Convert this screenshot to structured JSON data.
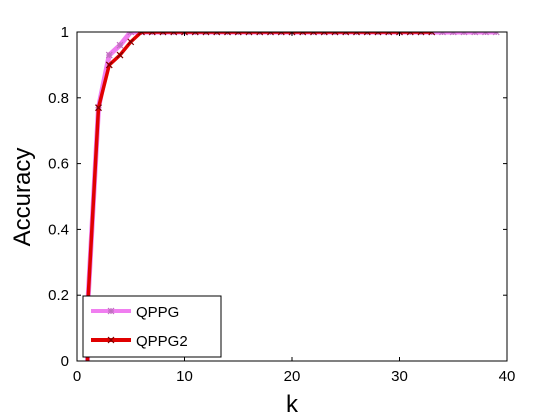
{
  "chart_data": {
    "type": "line",
    "xlabel": "k",
    "ylabel": "Accuracy",
    "xlim": [
      0,
      40
    ],
    "ylim": [
      0,
      1
    ],
    "xticks": [
      0,
      10,
      20,
      30,
      40
    ],
    "yticks": [
      0,
      0.2,
      0.4,
      0.6,
      0.8,
      1
    ],
    "xtick_labels": [
      "0",
      "10",
      "20",
      "30",
      "40"
    ],
    "ytick_labels": [
      "0",
      "0.2",
      "0.4",
      "0.6",
      "0.8",
      "1"
    ],
    "grid": false,
    "legend_position": "bottom-left",
    "series": [
      {
        "name": "QPPG",
        "color": "#f07ef0",
        "marker": "star",
        "x": [
          1,
          2,
          3,
          4,
          5,
          6,
          7,
          8,
          9,
          10,
          11,
          12,
          13,
          14,
          15,
          16,
          17,
          18,
          19,
          20,
          21,
          22,
          23,
          24,
          25,
          26,
          27,
          28,
          29,
          30,
          31,
          32,
          33,
          34,
          35,
          36,
          37,
          38,
          39
        ],
        "y": [
          0.17,
          0.77,
          0.93,
          0.96,
          1,
          1,
          1,
          1,
          1,
          1,
          1,
          1,
          1,
          1,
          1,
          1,
          1,
          1,
          1,
          1,
          1,
          1,
          1,
          1,
          1,
          1,
          1,
          1,
          1,
          1,
          1,
          1,
          1,
          1,
          1,
          1,
          1,
          1,
          1
        ]
      },
      {
        "name": "QPPG2",
        "color": "#e00000",
        "marker": "x",
        "x": [
          1,
          2,
          3,
          4,
          5,
          6,
          7,
          8,
          9,
          10,
          11,
          12,
          13,
          14,
          15,
          16,
          17,
          18,
          19,
          20,
          21,
          22,
          23,
          24,
          25,
          26,
          27,
          28,
          29,
          30,
          31,
          32,
          33
        ],
        "y": [
          0.17,
          0.77,
          0.9,
          0.93,
          0.97,
          1,
          1,
          1,
          1,
          1,
          1,
          1,
          1,
          1,
          1,
          1,
          1,
          1,
          1,
          1,
          1,
          1,
          1,
          1,
          1,
          1,
          1,
          1,
          1,
          1,
          1,
          1,
          1
        ]
      }
    ]
  }
}
